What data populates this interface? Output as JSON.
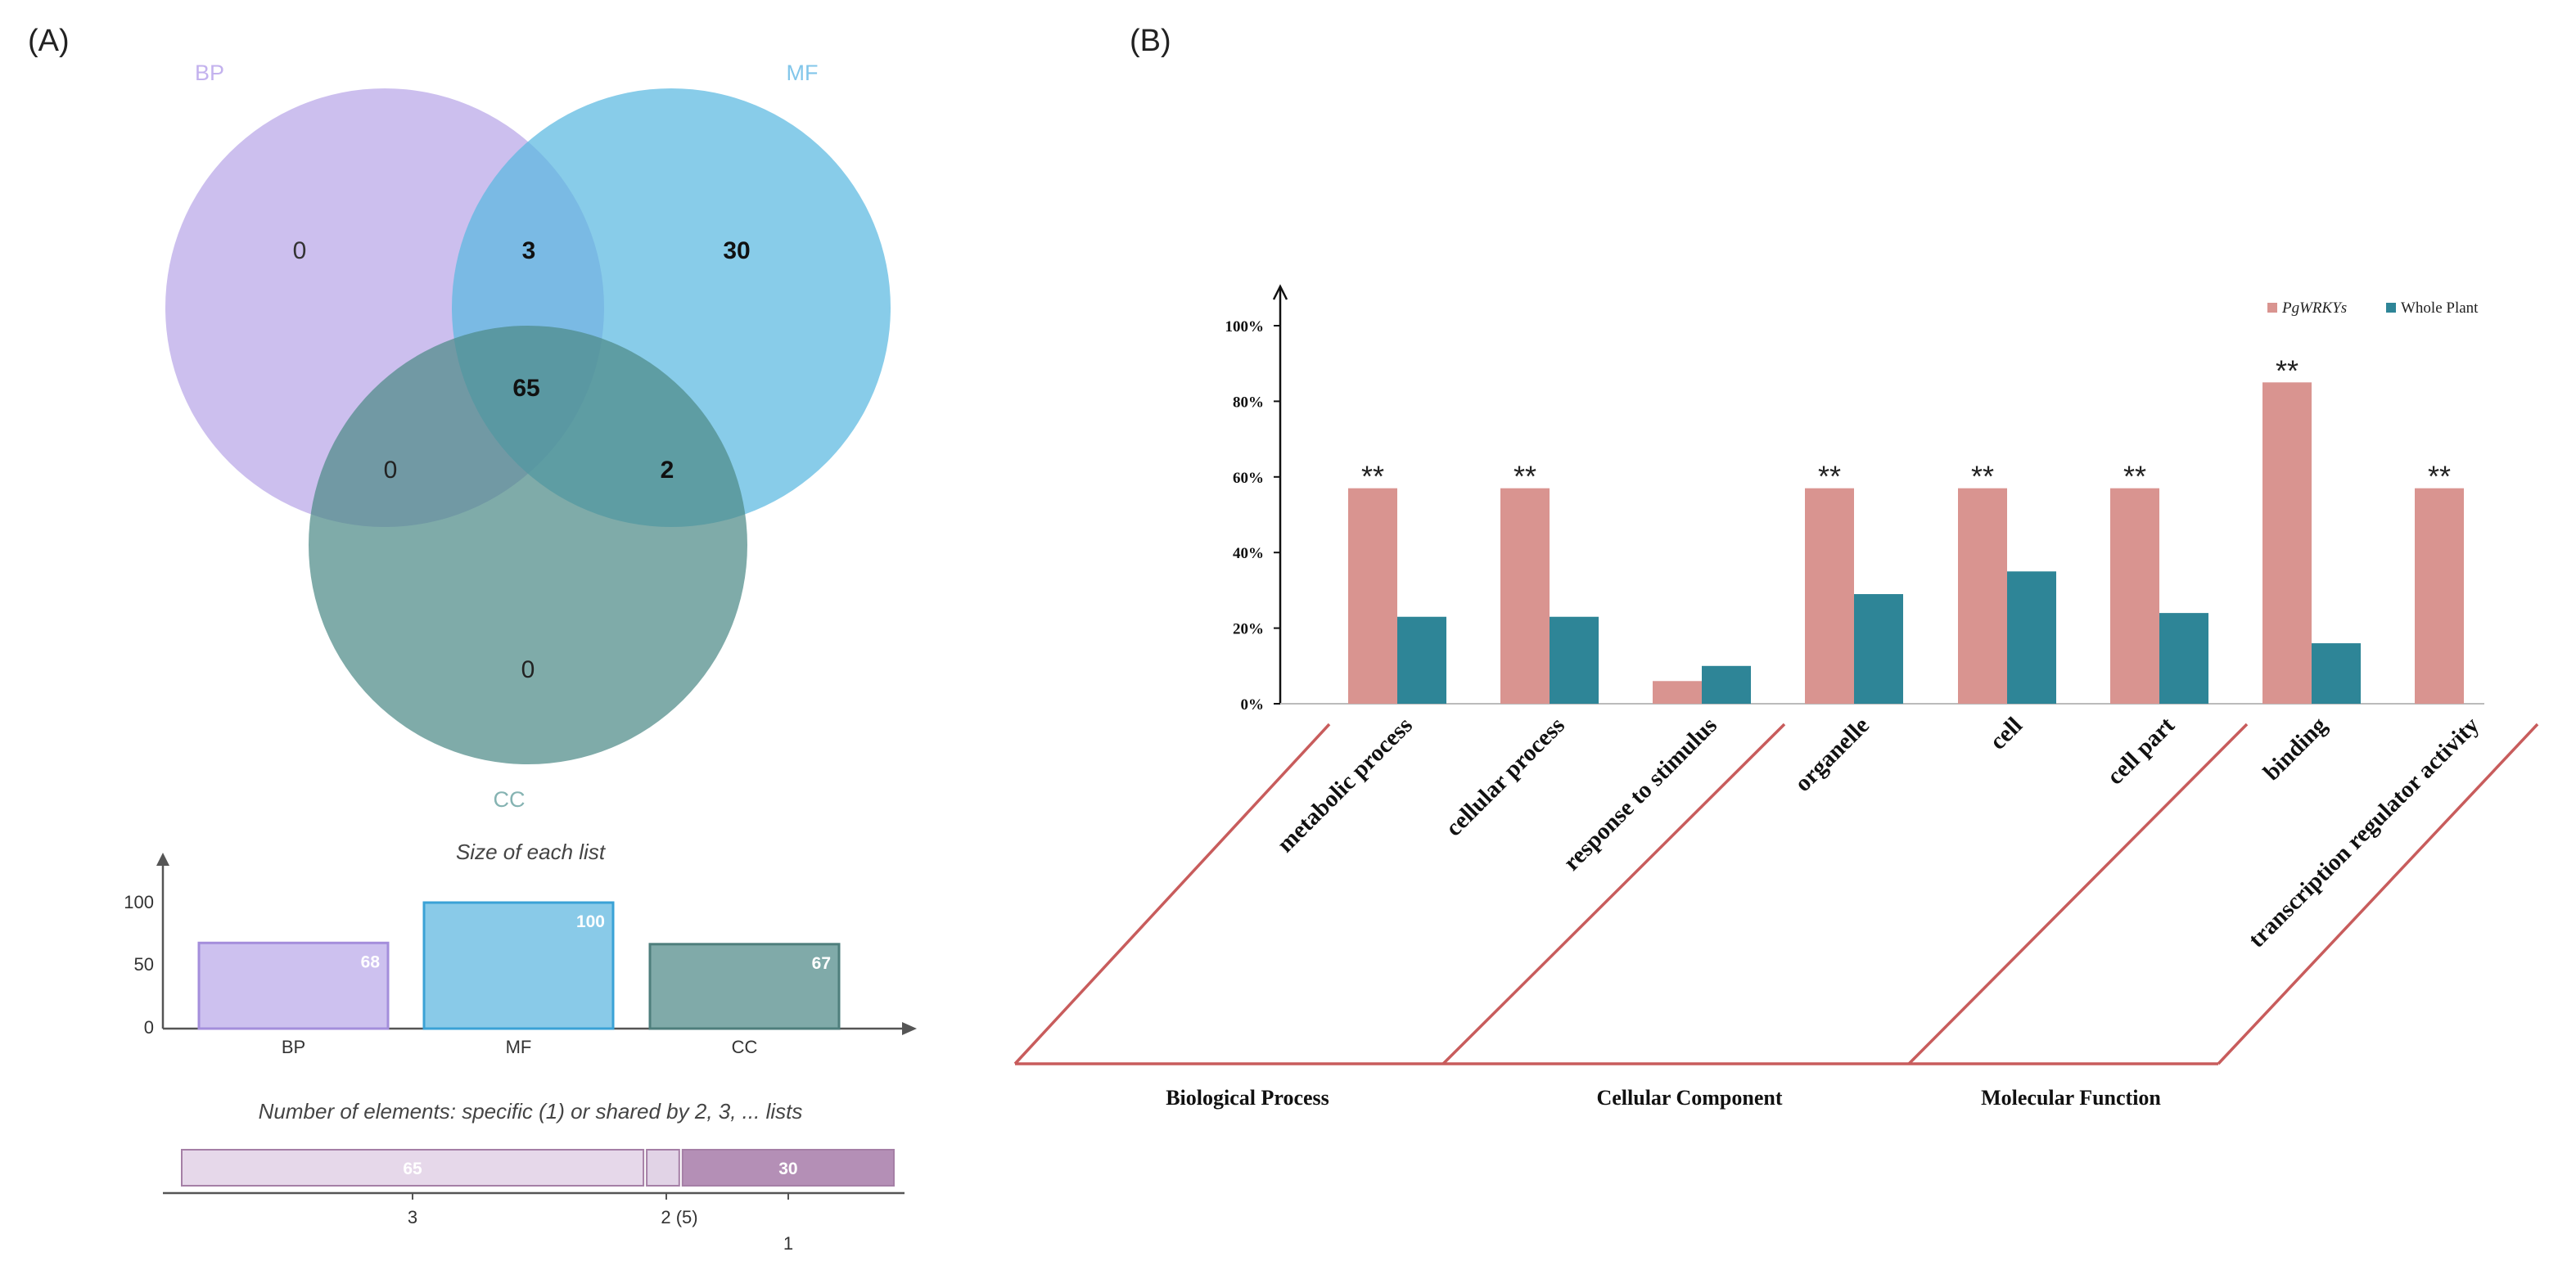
{
  "panel_a": {
    "label": "(A)",
    "venn": {
      "set_labels": [
        "BP",
        "MF",
        "CC"
      ],
      "colors": {
        "BP": "#b9a6e8",
        "MF": "#5ab8e0",
        "CC": "#4e8a88"
      },
      "regions": {
        "bp_only": "0",
        "bp_mf": "3",
        "mf_only": "30",
        "all_three": "65",
        "bp_cc": "0",
        "mf_cc": "2",
        "cc_only": "0"
      }
    },
    "size_chart": {
      "title": "Size of each list",
      "ytick_labels": [
        "100",
        "50",
        "0"
      ]
    },
    "shared_chart": {
      "title": "Number of elements: specific (1) or shared by 2, 3, ... lists",
      "segments": [
        {
          "value": 65,
          "label": "65",
          "color": "#e6d8ea"
        },
        {
          "value": 5,
          "label": "",
          "color": "#e1d3e6"
        },
        {
          "value": 30,
          "label": "30",
          "color": "#b48fb6"
        }
      ],
      "axis_labels": [
        "3",
        "2 (5)",
        "1"
      ]
    }
  },
  "panel_b": {
    "label": "(B)",
    "legend": {
      "series1": "PgWRKYs",
      "series2": "Whole Plant"
    },
    "group_labels": [
      "Biological Process",
      "Cellular  Component",
      "Molecular  Function"
    ],
    "significance_mark": "**"
  },
  "chart_data": [
    {
      "type": "bar",
      "title": "Size of each list",
      "categories": [
        "BP",
        "MF",
        "CC"
      ],
      "values": [
        68,
        100,
        67
      ],
      "ylim": [
        0,
        120
      ],
      "yticks": [
        0,
        50,
        100
      ],
      "colors": [
        "#cdc1ef",
        "#89cae8",
        "#80aaa9"
      ],
      "border_colors": [
        "#a48edb",
        "#3aa2d6",
        "#4e7e7c"
      ]
    },
    {
      "type": "bar",
      "title": "",
      "categories": [
        "metabolic process",
        "cellular process",
        "response to stimulus",
        "organelle",
        "cell",
        "cell part",
        "binding",
        "transcription regulator activity"
      ],
      "series": [
        {
          "name": "PgWRKYs",
          "color": "#d99490",
          "values": [
            57,
            57,
            6,
            57,
            57,
            57,
            85,
            57
          ]
        },
        {
          "name": "Whole Plant",
          "color": "#2e8597",
          "values": [
            23,
            23,
            10,
            29,
            35,
            24,
            16,
            0
          ]
        }
      ],
      "significant": [
        true,
        true,
        false,
        true,
        true,
        true,
        true,
        true
      ],
      "ylim": [
        0,
        100
      ],
      "ytick_labels": [
        "0%",
        "20%",
        "40%",
        "60%",
        "80%",
        "100%"
      ],
      "groups": [
        {
          "name": "Biological Process",
          "categories": [
            "metabolic process",
            "cellular process",
            "response to stimulus"
          ]
        },
        {
          "name": "Cellular  Component",
          "categories": [
            "organelle",
            "cell",
            "cell part"
          ]
        },
        {
          "name": "Molecular  Function",
          "categories": [
            "binding",
            "transcription regulator activity"
          ]
        }
      ],
      "legend": "top-right",
      "grid": false
    }
  ]
}
